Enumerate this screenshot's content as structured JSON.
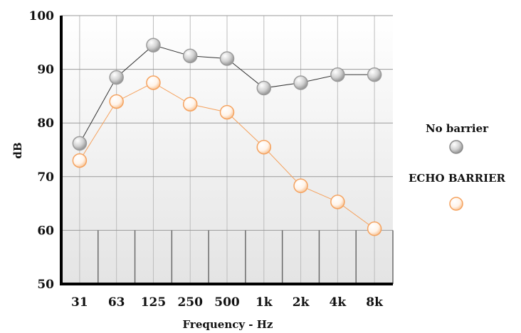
{
  "chart_data": {
    "type": "line",
    "categories": [
      "31",
      "63",
      "125",
      "250",
      "500",
      "1k",
      "2k",
      "4k",
      "8k"
    ],
    "series": [
      {
        "name": "No barrier",
        "values": [
          76.2,
          88.5,
          94.5,
          92.5,
          92.0,
          86.5,
          87.5,
          89.0,
          89.0
        ],
        "color": "#9a9a9a",
        "line_color": "#333333"
      },
      {
        "name": "ECHO BARRIER",
        "values": [
          73.0,
          84.0,
          87.5,
          83.5,
          82.0,
          75.5,
          68.3,
          65.3,
          60.3
        ],
        "color": "#f5a25e",
        "line_color": "#f5a25e"
      }
    ],
    "yticks": [
      "50",
      "60",
      "70",
      "80",
      "90",
      "100"
    ],
    "ylim": [
      50,
      100
    ],
    "xlabel": "Frequency - Hz",
    "ylabel": "dB",
    "legend_position": "right",
    "grid": true
  }
}
